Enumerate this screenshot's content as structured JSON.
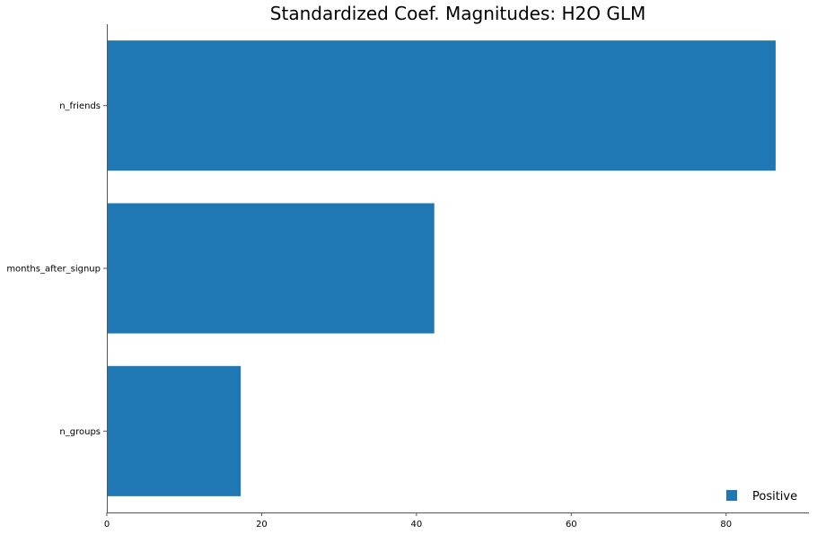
{
  "chart_data": {
    "type": "bar",
    "orientation": "horizontal",
    "title": "Standardized Coef. Magnitudes: H2O GLM",
    "xlabel": "",
    "ylabel": "",
    "categories": [
      "n_friends",
      "months_after_signup",
      "n_groups"
    ],
    "series": [
      {
        "name": "Positive",
        "values": [
          86.4,
          42.3,
          17.3
        ]
      }
    ],
    "xlim": [
      0,
      90.7
    ],
    "xticks": [
      0,
      20,
      40,
      60,
      80
    ],
    "grid": false,
    "legend_position": "bottom-right",
    "colors": {
      "bar": "#1f77b4",
      "axis": "#000000"
    }
  }
}
